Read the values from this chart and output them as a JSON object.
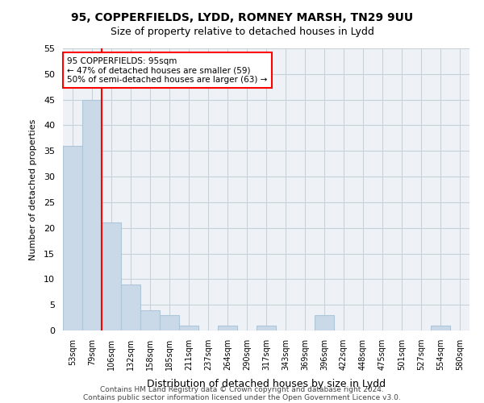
{
  "title_line1": "95, COPPERFIELDS, LYDD, ROMNEY MARSH, TN29 9UU",
  "title_line2": "Size of property relative to detached houses in Lydd",
  "xlabel": "Distribution of detached houses by size in Lydd",
  "ylabel": "Number of detached properties",
  "bar_labels": [
    "53sqm",
    "79sqm",
    "106sqm",
    "132sqm",
    "158sqm",
    "185sqm",
    "211sqm",
    "237sqm",
    "264sqm",
    "290sqm",
    "317sqm",
    "343sqm",
    "369sqm",
    "396sqm",
    "422sqm",
    "448sqm",
    "475sqm",
    "501sqm",
    "527sqm",
    "554sqm",
    "580sqm"
  ],
  "bar_values": [
    36,
    45,
    21,
    9,
    4,
    3,
    1,
    0,
    1,
    0,
    1,
    0,
    0,
    3,
    0,
    0,
    0,
    0,
    0,
    1,
    0
  ],
  "bar_color": "#c9d9e8",
  "bar_edge_color": "#aec6d8",
  "grid_color": "#c8d0d8",
  "background_color": "#eef2f7",
  "annotation_text": "95 COPPERFIELDS: 95sqm\n← 47% of detached houses are smaller (59)\n50% of semi-detached houses are larger (63) →",
  "annotation_box_color": "white",
  "annotation_box_edge": "red",
  "vline_x_index": 1.5,
  "vline_color": "red",
  "ylim": [
    0,
    55
  ],
  "yticks": [
    0,
    5,
    10,
    15,
    20,
    25,
    30,
    35,
    40,
    45,
    50,
    55
  ],
  "footer_line1": "Contains HM Land Registry data © Crown copyright and database right 2024.",
  "footer_line2": "Contains public sector information licensed under the Open Government Licence v3.0."
}
